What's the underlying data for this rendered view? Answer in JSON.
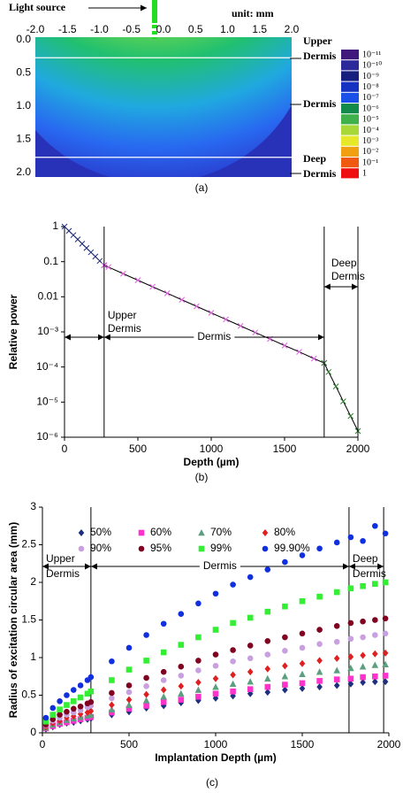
{
  "chart_data": [
    {
      "type": "heatmap",
      "annotations": {
        "light_source": "Light source",
        "unit": "unit: mm"
      },
      "xlim": [
        -2,
        2
      ],
      "xticks": [
        {
          "value": -2,
          "label": "-2.0"
        },
        -1.5,
        {
          "value": -1,
          "label": "-1.0"
        },
        -0.5,
        {
          "value": 0,
          "label": "0.0"
        },
        0.5,
        {
          "value": 1,
          "label": "1.0"
        },
        1.5,
        {
          "value": 2,
          "label": "2.0"
        }
      ],
      "ylim": [
        0,
        2
      ],
      "y_inverted": true,
      "yticks": [
        {
          "value": 0,
          "label": "0.0"
        },
        0.5,
        {
          "value": 1,
          "label": "1.0"
        },
        1.5,
        {
          "value": 2,
          "label": "2.0"
        }
      ],
      "boundaries": [
        0.27,
        1.77
      ],
      "region_labels": [
        "Upper Dermis",
        "Dermis",
        "Deep Dermis"
      ],
      "colorbar": [
        {
          "label": "10⁻¹¹",
          "color": "#40197d"
        },
        {
          "label": "10⁻¹⁰",
          "color": "#2c2a9a"
        },
        {
          "label": "10⁻⁹",
          "color": "#161f7e"
        },
        {
          "label": "10⁻⁸",
          "color": "#1632c0"
        },
        {
          "label": "10⁻⁷",
          "color": "#1a50e8"
        },
        {
          "label": "10⁻⁶",
          "color": "#128a4a"
        },
        {
          "label": "10⁻⁵",
          "color": "#3fb14a"
        },
        {
          "label": "10⁻⁴",
          "color": "#a8d838"
        },
        {
          "label": "10⁻³",
          "color": "#e8e82a"
        },
        {
          "label": "10⁻²",
          "color": "#f0a010"
        },
        {
          "label": "10⁻¹",
          "color": "#f05a10"
        },
        {
          "label": "1",
          "color": "#ee1010"
        }
      ],
      "panel_label": "(a)"
    },
    {
      "type": "line",
      "xlabel": "Depth (µm)",
      "ylabel": "Relative power",
      "xlim": [
        0,
        2000
      ],
      "xticks": [
        0,
        500,
        1000,
        1500,
        2000
      ],
      "ylim": [
        1e-06,
        1
      ],
      "log_y": true,
      "yticks": [
        1,
        0.1,
        0.01,
        {
          "value": 0.001,
          "label": "10⁻³"
        },
        {
          "value": 0.0001,
          "label": "10⁻⁴"
        },
        {
          "value": 1e-05,
          "label": "10⁻⁵"
        },
        {
          "value": 1e-06,
          "label": "10⁻⁶"
        }
      ],
      "line_color": "#000000",
      "series": [
        {
          "color": "#1f2f7f",
          "x": [
            0,
            30,
            60,
            90,
            120,
            150,
            180,
            210,
            240,
            270
          ],
          "values": [
            1,
            0.755,
            0.57,
            0.43,
            0.324,
            0.245,
            0.185,
            0.14,
            0.105,
            0.079
          ]
        },
        {
          "color": "#e060e0",
          "x": [
            270,
            300,
            400,
            500,
            600,
            700,
            800,
            900,
            1000,
            1100,
            1200,
            1300,
            1400,
            1500,
            1600,
            1700,
            1770
          ],
          "values": [
            0.079,
            0.07,
            0.0455,
            0.0296,
            0.0193,
            0.0126,
            0.0082,
            0.00535,
            0.00348,
            0.00227,
            0.00148,
            0.00096,
            0.00063,
            0.00041,
            0.00027,
            0.000174,
            0.00013
          ]
        },
        {
          "color": "#2e7d32",
          "x": [
            1770,
            1800,
            1850,
            1900,
            1950,
            2000
          ],
          "values": [
            0.00013,
            7.2e-05,
            2.8e-05,
            1.05e-05,
            4e-06,
            1.5e-06
          ]
        }
      ],
      "region_bounds": [
        270,
        1770,
        2000
      ],
      "region_labels": [
        "Upper Dermis",
        "Dermis",
        "Deep Dermis"
      ],
      "panel_label": "(b)"
    },
    {
      "type": "scatter",
      "xlabel": "Implantation Depth (µm)",
      "ylabel": "Radius of excitation circular area (mm)",
      "xlim": [
        0,
        2000
      ],
      "xticks": [
        0,
        500,
        1000,
        1500,
        2000
      ],
      "ylim": [
        0,
        3
      ],
      "yticks": [
        0,
        0.5,
        1,
        1.5,
        2,
        2.5,
        3
      ],
      "x": [
        20,
        60,
        100,
        140,
        180,
        220,
        260,
        280,
        400,
        500,
        600,
        700,
        800,
        900,
        1000,
        1100,
        1200,
        1300,
        1400,
        1500,
        1600,
        1700,
        1780,
        1850,
        1920,
        1980
      ],
      "series": [
        {
          "name": "50%",
          "color": "#1f2f7f",
          "marker": "diamond",
          "values": [
            0.05,
            0.08,
            0.11,
            0.13,
            0.14,
            0.16,
            0.18,
            0.19,
            0.24,
            0.28,
            0.33,
            0.36,
            0.4,
            0.43,
            0.46,
            0.49,
            0.52,
            0.54,
            0.57,
            0.59,
            0.61,
            0.63,
            0.65,
            0.67,
            0.68,
            0.68
          ]
        },
        {
          "name": "60%",
          "color": "#ff33cc",
          "marker": "square",
          "values": [
            0.06,
            0.09,
            0.12,
            0.14,
            0.16,
            0.18,
            0.2,
            0.21,
            0.27,
            0.32,
            0.36,
            0.41,
            0.44,
            0.48,
            0.52,
            0.55,
            0.58,
            0.61,
            0.64,
            0.66,
            0.69,
            0.71,
            0.72,
            0.74,
            0.75,
            0.76
          ]
        },
        {
          "name": "70%",
          "color": "#5c9f7f",
          "marker": "triangle",
          "values": [
            0.07,
            0.11,
            0.14,
            0.17,
            0.19,
            0.21,
            0.23,
            0.24,
            0.31,
            0.37,
            0.43,
            0.48,
            0.52,
            0.57,
            0.61,
            0.65,
            0.68,
            0.72,
            0.75,
            0.78,
            0.81,
            0.83,
            0.86,
            0.88,
            0.9,
            0.91
          ]
        },
        {
          "name": "80%",
          "color": "#e02020",
          "marker": "diamond",
          "values": [
            0.08,
            0.13,
            0.16,
            0.2,
            0.22,
            0.25,
            0.27,
            0.29,
            0.37,
            0.44,
            0.51,
            0.57,
            0.62,
            0.67,
            0.72,
            0.77,
            0.81,
            0.85,
            0.89,
            0.92,
            0.96,
            0.99,
            1.01,
            1.03,
            1.05,
            1.06
          ]
        },
        {
          "name": "90%",
          "color": "#c8a0e0",
          "marker": "circle",
          "values": [
            0.1,
            0.16,
            0.2,
            0.24,
            0.27,
            0.3,
            0.34,
            0.36,
            0.46,
            0.54,
            0.62,
            0.7,
            0.76,
            0.83,
            0.89,
            0.95,
            0.99,
            1.04,
            1.09,
            1.13,
            1.18,
            1.21,
            1.25,
            1.27,
            1.3,
            1.32
          ]
        },
        {
          "name": "95%",
          "color": "#800020",
          "marker": "circle",
          "values": [
            0.11,
            0.18,
            0.24,
            0.28,
            0.32,
            0.35,
            0.39,
            0.41,
            0.53,
            0.63,
            0.73,
            0.81,
            0.88,
            0.96,
            1.04,
            1.1,
            1.16,
            1.22,
            1.27,
            1.32,
            1.37,
            1.42,
            1.46,
            1.48,
            1.5,
            1.52
          ]
        },
        {
          "name": "99%",
          "color": "#33ee33",
          "marker": "square",
          "values": [
            0.15,
            0.24,
            0.31,
            0.37,
            0.42,
            0.47,
            0.52,
            0.55,
            0.7,
            0.84,
            0.96,
            1.07,
            1.17,
            1.27,
            1.37,
            1.46,
            1.53,
            1.61,
            1.68,
            1.75,
            1.81,
            1.87,
            1.92,
            1.95,
            1.98,
            2.0
          ]
        },
        {
          "name": "99.90%",
          "color": "#1030e0",
          "marker": "circle",
          "values": [
            0.2,
            0.33,
            0.42,
            0.5,
            0.57,
            0.63,
            0.7,
            0.74,
            0.95,
            1.13,
            1.3,
            1.45,
            1.58,
            1.72,
            1.85,
            1.97,
            2.07,
            2.17,
            2.27,
            2.36,
            2.45,
            2.53,
            2.6,
            2.55,
            2.75,
            2.65
          ]
        }
      ],
      "region_bounds": [
        280,
        1770,
        1970
      ],
      "region_labels": [
        "Upper Dermis",
        "Dermis",
        "Deep Dermis"
      ],
      "panel_label": "(c)"
    }
  ]
}
